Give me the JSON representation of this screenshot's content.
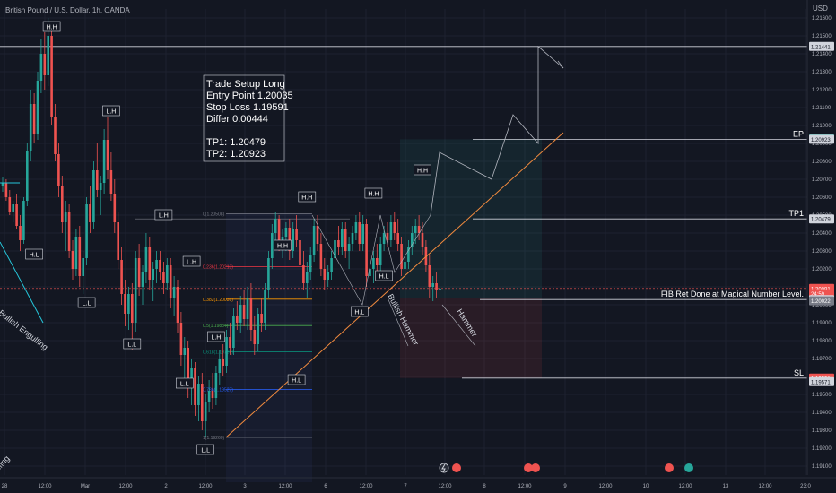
{
  "header": {
    "symbol_title": "British Pound / U.S. Dollar, 1h, OANDA"
  },
  "colors": {
    "background": "#131722",
    "grid": "#1e2230",
    "up": "#26a69a",
    "down": "#ef5350",
    "text": "#b2b5be",
    "white": "#d1d4dc",
    "orange": "#f08a3e",
    "fib": "#f23645"
  },
  "chart_data": {
    "type": "candlestick",
    "currency_label": "USD",
    "ylim": [
      1.1905,
      1.2165
    ],
    "y_ticks": [
      1.191,
      1.192,
      1.193,
      1.194,
      1.195,
      1.196,
      1.197,
      1.198,
      1.199,
      1.2,
      1.201,
      1.202,
      1.203,
      1.204,
      1.205,
      1.206,
      1.207,
      1.208,
      1.209,
      1.21,
      1.211,
      1.212,
      1.213,
      1.214,
      1.215,
      1.216
    ],
    "y_tick_labels": [
      "1.19100",
      "1.19200",
      "1.19300",
      "1.19400",
      "1.19500",
      "1.19600",
      "1.19700",
      "1.19800",
      "1.19900",
      "1.20000",
      "1.20100",
      "1.20200",
      "1.20300",
      "1.20400",
      "1.20500",
      "1.20600",
      "1.20700",
      "1.20800",
      "1.20900",
      "1.21000",
      "1.21100",
      "1.21200",
      "1.21300",
      "1.21400",
      "1.21500",
      "1.21600"
    ],
    "x_tick_labels": [
      "28",
      "12:00",
      "Mar",
      "12:00",
      "2",
      "12:00",
      "3",
      "12:00",
      "6",
      "12:00",
      "7",
      "12:00",
      "8",
      "12:00",
      "9",
      "12:00",
      "10",
      "12:00",
      "13",
      "12:00",
      "23:0"
    ],
    "grid": true,
    "price_badges": [
      {
        "value": "1.21441",
        "price": 1.21441,
        "style": "white"
      },
      {
        "value": "1.20925",
        "price": 1.20925,
        "style": "teal"
      },
      {
        "value": "1.20923",
        "price": 1.20923,
        "style": "white"
      },
      {
        "value": "1.20479",
        "price": 1.20479,
        "style": "white"
      },
      {
        "value": "1.20091",
        "price": 1.20091,
        "style": "red"
      },
      {
        "value": "24:59",
        "price": 1.20062,
        "style": "red"
      },
      {
        "value": "1.20029",
        "price": 1.20029,
        "style": "white"
      },
      {
        "value": "1.20022",
        "price": 1.20022,
        "style": "gray"
      },
      {
        "value": "1.19591",
        "price": 1.19591,
        "style": "red"
      },
      {
        "value": "1.19571",
        "price": 1.19571,
        "style": "white"
      }
    ],
    "level_labels": [
      {
        "text": "EP",
        "price": 1.20923
      },
      {
        "text": "TP1",
        "price": 1.20479
      },
      {
        "text": "FIB Ret  Done at Magical Number Level.",
        "price": 1.20029
      },
      {
        "text": "SL",
        "price": 1.19591
      }
    ],
    "setup_note": [
      "Trade Setup Long",
      "Entry Point 1.20035",
      "Stop Loss 1.19591",
      "Differ 0.00444",
      "",
      "TP1: 1.20479",
      "TP2: 1.20923"
    ],
    "fib_levels": [
      {
        "label": "0(1.20508)",
        "price": 1.20508
      },
      {
        "label": "0.236(1.20213)",
        "price": 1.20213
      },
      {
        "label": "0.382(1.20031)",
        "price": 1.20031
      },
      {
        "label": "0.5(1.19884)",
        "price": 1.19884
      },
      {
        "label": "0.618(1.19737)",
        "price": 1.19737
      },
      {
        "label": "0.786(1.19527)",
        "price": 1.19527
      },
      {
        "label": "1(1.19260)",
        "price": 1.1926
      }
    ],
    "structure_labels": [
      {
        "text": "H.H",
        "bar": 14,
        "price": 1.2155,
        "pos": "above"
      },
      {
        "text": "L.H",
        "bar": 31,
        "price": 1.2108,
        "pos": "above"
      },
      {
        "text": "L.H",
        "bar": 46,
        "price": 1.205,
        "pos": "above"
      },
      {
        "text": "H.L",
        "bar": 9,
        "price": 1.2028,
        "pos": "below"
      },
      {
        "text": "L.L",
        "bar": 24,
        "price": 1.2001,
        "pos": "below"
      },
      {
        "text": "L.L",
        "bar": 37,
        "price": 1.1978,
        "pos": "below"
      },
      {
        "text": "L.H",
        "bar": 54,
        "price": 1.2024,
        "pos": "above"
      },
      {
        "text": "L.L",
        "bar": 52,
        "price": 1.1956,
        "pos": "below"
      },
      {
        "text": "L.H",
        "bar": 61,
        "price": 1.1982,
        "pos": "above"
      },
      {
        "text": "L.L",
        "bar": 58,
        "price": 1.1919,
        "pos": "below"
      },
      {
        "text": "H.H",
        "bar": 80,
        "price": 1.2033,
        "pos": "above"
      },
      {
        "text": "H.L",
        "bar": 84,
        "price": 1.1958,
        "pos": "below"
      },
      {
        "text": "H.H",
        "bar": 87,
        "price": 1.206,
        "pos": "above"
      },
      {
        "text": "H.H",
        "bar": 106,
        "price": 1.2062,
        "pos": "above"
      },
      {
        "text": "H.L",
        "bar": 102,
        "price": 1.1996,
        "pos": "below"
      },
      {
        "text": "H.H",
        "bar": 120,
        "price": 1.2075,
        "pos": "above"
      },
      {
        "text": "H.L",
        "bar": 109,
        "price": 1.2016,
        "pos": "below"
      }
    ],
    "pattern_labels": [
      "Bullish Engulfing",
      "Bullish Hammer",
      "Hammer",
      "lfing"
    ],
    "candles": [
      [
        1.2066,
        1.2071,
        1.2063,
        1.2068
      ],
      [
        1.2068,
        1.207,
        1.2058,
        1.206
      ],
      [
        1.206,
        1.2064,
        1.205,
        1.2052
      ],
      [
        1.2052,
        1.2058,
        1.2046,
        1.2056
      ],
      [
        1.2056,
        1.2062,
        1.2042,
        1.2044
      ],
      [
        1.2044,
        1.205,
        1.203,
        1.2036
      ],
      [
        1.2036,
        1.206,
        1.2034,
        1.2058
      ],
      [
        1.2058,
        1.209,
        1.2055,
        1.2086
      ],
      [
        1.2086,
        1.212,
        1.208,
        1.2112
      ],
      [
        1.2112,
        1.2118,
        1.209,
        1.2095
      ],
      [
        1.2095,
        1.213,
        1.2092,
        1.2125
      ],
      [
        1.2125,
        1.2148,
        1.2118,
        1.214
      ],
      [
        1.214,
        1.2152,
        1.212,
        1.2128
      ],
      [
        1.2128,
        1.216,
        1.2122,
        1.215
      ],
      [
        1.215,
        1.2158,
        1.21,
        1.2105
      ],
      [
        1.2105,
        1.2112,
        1.208,
        1.2084
      ],
      [
        1.2084,
        1.209,
        1.206,
        1.2066
      ],
      [
        1.2066,
        1.2072,
        1.204,
        1.2046
      ],
      [
        1.2046,
        1.2058,
        1.203,
        1.2052
      ],
      [
        1.2052,
        1.2056,
        1.2026,
        1.203
      ],
      [
        1.203,
        1.2036,
        1.2014,
        1.202
      ],
      [
        1.202,
        1.2042,
        1.2016,
        1.2038
      ],
      [
        1.2038,
        1.2044,
        1.201,
        1.2016
      ],
      [
        1.2016,
        1.203,
        1.2006,
        1.2026
      ],
      [
        1.2026,
        1.206,
        1.2022,
        1.2056
      ],
      [
        1.2056,
        1.2066,
        1.204,
        1.2046
      ],
      [
        1.2046,
        1.208,
        1.2042,
        1.2075
      ],
      [
        1.2075,
        1.209,
        1.206,
        1.2064
      ],
      [
        1.2064,
        1.2072,
        1.205,
        1.2068
      ],
      [
        1.2068,
        1.2098,
        1.2062,
        1.2092
      ],
      [
        1.2092,
        1.2105,
        1.207,
        1.2075
      ],
      [
        1.2075,
        1.2085,
        1.2058,
        1.2062
      ],
      [
        1.2062,
        1.207,
        1.204,
        1.2046
      ],
      [
        1.2046,
        1.2052,
        1.202,
        1.2025
      ],
      [
        1.2025,
        1.2032,
        1.2,
        1.2006
      ],
      [
        1.2006,
        1.2014,
        1.1988,
        1.1995
      ],
      [
        1.1995,
        1.201,
        1.1986,
        1.2006
      ],
      [
        1.2006,
        1.2012,
        1.1975,
        1.199
      ],
      [
        1.199,
        1.203,
        1.1985,
        1.2026
      ],
      [
        1.2026,
        1.2034,
        1.2005,
        1.201
      ],
      [
        1.201,
        1.2022,
        1.2,
        1.2018
      ],
      [
        1.2018,
        1.204,
        1.2012,
        1.2032
      ],
      [
        1.2032,
        1.2038,
        1.2008,
        1.2014
      ],
      [
        1.2014,
        1.2024,
        1.2002,
        1.202
      ],
      [
        1.202,
        1.203,
        1.2012,
        1.2025
      ],
      [
        1.2025,
        1.203,
        1.2014,
        1.2018
      ],
      [
        1.2018,
        1.2024,
        1.2006,
        1.2012
      ],
      [
        1.2012,
        1.2026,
        1.2008,
        1.2022
      ],
      [
        1.2022,
        1.2026,
        1.1998,
        1.2004
      ],
      [
        1.2004,
        1.2016,
        1.1994,
        1.201
      ],
      [
        1.201,
        1.2014,
        1.1984,
        1.199
      ],
      [
        1.199,
        1.1996,
        1.1966,
        1.1972
      ],
      [
        1.1972,
        1.1982,
        1.1958,
        1.1976
      ],
      [
        1.1976,
        1.198,
        1.1948,
        1.1954
      ],
      [
        1.1954,
        1.197,
        1.1944,
        1.1965
      ],
      [
        1.1965,
        1.1968,
        1.1938,
        1.1944
      ],
      [
        1.1944,
        1.196,
        1.1935,
        1.1956
      ],
      [
        1.1956,
        1.1962,
        1.193,
        1.1935
      ],
      [
        1.1935,
        1.195,
        1.1926,
        1.1946
      ],
      [
        1.1946,
        1.1958,
        1.194,
        1.1952
      ],
      [
        1.1952,
        1.1962,
        1.1942,
        1.1948
      ],
      [
        1.1948,
        1.1966,
        1.1944,
        1.1962
      ],
      [
        1.1962,
        1.1975,
        1.1955,
        1.197
      ],
      [
        1.197,
        1.1978,
        1.196,
        1.1966
      ],
      [
        1.1966,
        1.1986,
        1.1962,
        1.1982
      ],
      [
        1.1982,
        1.199,
        1.1972,
        1.1976
      ],
      [
        1.1976,
        1.1998,
        1.1972,
        1.1994
      ],
      [
        1.1994,
        1.2002,
        1.1986,
        1.199
      ],
      [
        1.199,
        1.2005,
        1.1984,
        1.2
      ],
      [
        1.2,
        1.2008,
        1.1988,
        1.1992
      ],
      [
        1.1992,
        1.201,
        1.1986,
        1.2004
      ],
      [
        1.2004,
        1.2012,
        1.198,
        1.1986
      ],
      [
        1.1986,
        1.1994,
        1.1972,
        1.1978
      ],
      [
        1.1978,
        1.1998,
        1.1974,
        1.1995
      ],
      [
        1.1995,
        1.2004,
        1.1985,
        1.199
      ],
      [
        1.199,
        1.2012,
        1.1986,
        1.2008
      ],
      [
        1.2008,
        1.203,
        1.2004,
        1.2026
      ],
      [
        1.2026,
        1.2045,
        1.202,
        1.204
      ],
      [
        1.204,
        1.2052,
        1.2034,
        1.2048
      ],
      [
        1.2048,
        1.205,
        1.203,
        1.2034
      ],
      [
        1.2034,
        1.2042,
        1.2026,
        1.2038
      ],
      [
        1.2038,
        1.2046,
        1.203,
        1.2043
      ],
      [
        1.2043,
        1.2048,
        1.2025,
        1.203
      ],
      [
        1.203,
        1.2046,
        1.2026,
        1.2042
      ],
      [
        1.2042,
        1.205,
        1.2032,
        1.2036
      ],
      [
        1.2036,
        1.204,
        1.2018,
        1.2022
      ],
      [
        1.2022,
        1.203,
        1.2008,
        1.2012
      ],
      [
        1.2012,
        1.2024,
        1.2004,
        1.2018
      ],
      [
        1.2018,
        1.2032,
        1.2014,
        1.2028
      ],
      [
        1.2028,
        1.2048,
        1.2024,
        1.2044
      ],
      [
        1.2044,
        1.205,
        1.203,
        1.2034
      ],
      [
        1.2034,
        1.204,
        1.2016,
        1.202
      ],
      [
        1.202,
        1.2026,
        1.2008,
        1.2014
      ],
      [
        1.2014,
        1.2022,
        1.201,
        1.2018
      ],
      [
        1.2018,
        1.203,
        1.2014,
        1.2026
      ],
      [
        1.2026,
        1.204,
        1.2022,
        1.2036
      ],
      [
        1.2036,
        1.2044,
        1.2028,
        1.2032
      ],
      [
        1.2032,
        1.2046,
        1.2028,
        1.2042
      ],
      [
        1.2042,
        1.2046,
        1.2026,
        1.203
      ],
      [
        1.203,
        1.2038,
        1.202,
        1.2034
      ],
      [
        1.2034,
        1.2044,
        1.203,
        1.204
      ],
      [
        1.204,
        1.205,
        1.2036,
        1.2046
      ],
      [
        1.2046,
        1.2052,
        1.203,
        1.2034
      ],
      [
        1.2034,
        1.205,
        1.203,
        1.2045
      ],
      [
        1.2045,
        1.2048,
        1.201,
        1.2016
      ],
      [
        1.2016,
        1.2024,
        1.2008,
        1.202
      ],
      [
        1.202,
        1.203,
        1.2012,
        1.2026
      ],
      [
        1.2026,
        1.2034,
        1.2018,
        1.2022
      ],
      [
        1.2022,
        1.2038,
        1.2018,
        1.2034
      ],
      [
        1.2034,
        1.2044,
        1.203,
        1.204
      ],
      [
        1.204,
        1.2046,
        1.2032,
        1.2036
      ],
      [
        1.2036,
        1.205,
        1.2032,
        1.2046
      ],
      [
        1.2046,
        1.2052,
        1.2036,
        1.204
      ],
      [
        1.204,
        1.2048,
        1.203,
        1.2034
      ],
      [
        1.2034,
        1.2038,
        1.2016,
        1.202
      ],
      [
        1.202,
        1.2028,
        1.2014,
        1.2024
      ],
      [
        1.2024,
        1.2036,
        1.202,
        1.2032
      ],
      [
        1.2032,
        1.2044,
        1.2028,
        1.204
      ],
      [
        1.204,
        1.2048,
        1.2034,
        1.2044
      ],
      [
        1.2044,
        1.205,
        1.2036,
        1.204
      ],
      [
        1.204,
        1.2046,
        1.2028,
        1.2032
      ],
      [
        1.2032,
        1.2036,
        1.2018,
        1.2022
      ],
      [
        1.2022,
        1.2028,
        1.2004,
        1.201
      ],
      [
        1.201,
        1.2016,
        1.2002,
        1.2012
      ],
      [
        1.2012,
        1.2018,
        1.2004,
        1.2008
      ],
      [
        1.2008,
        1.2014,
        1.2002,
        1.2009
      ]
    ]
  },
  "toolbar_icons": [
    "lightning-icon",
    "calendar-flag-icon",
    "calendar-flag-icon",
    "calendar-flag-icon",
    "calendar-flag-icon",
    "calendar-flag-icon"
  ]
}
